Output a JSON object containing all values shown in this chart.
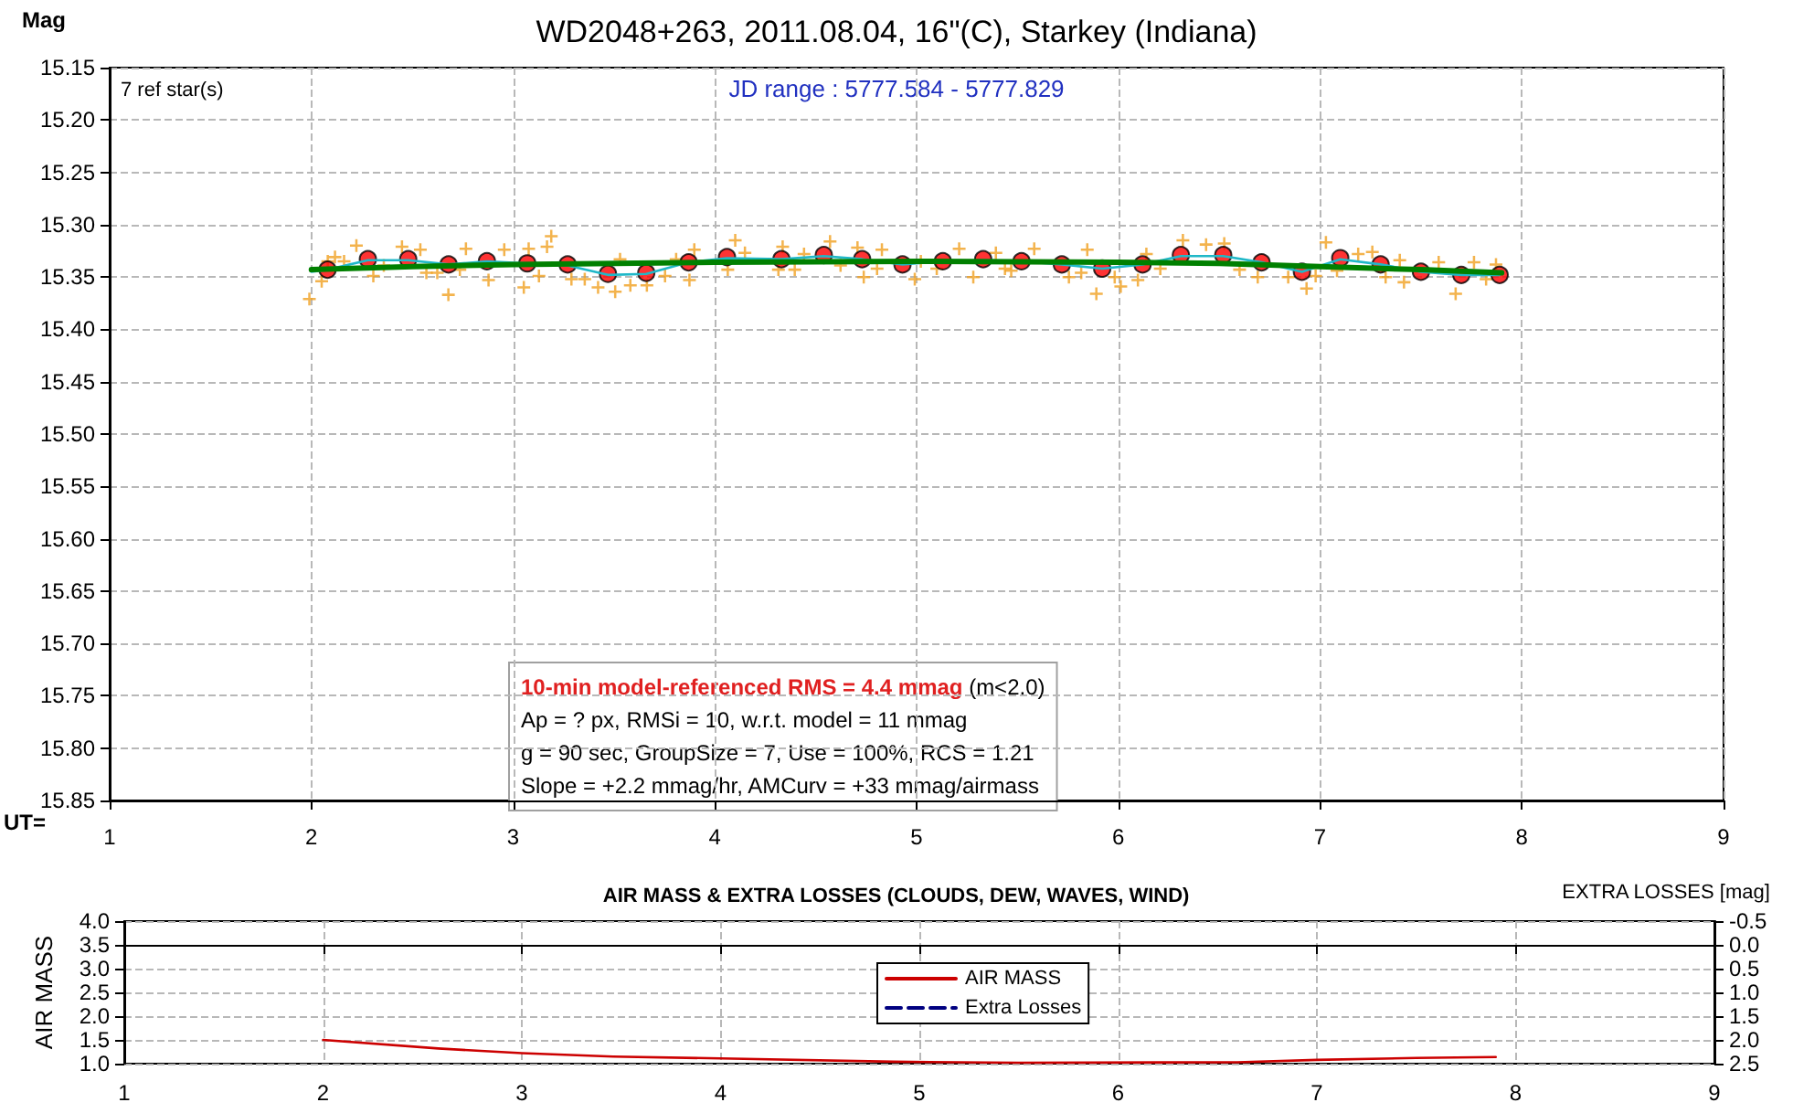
{
  "chart_data": [
    {
      "type": "scatter",
      "title": "WD2048+263, 2011.08.04, 16\"(C), Starkey (Indiana)",
      "xlabel": "UT=",
      "ylabel": "Mag",
      "annotations": [
        "7 ref star(s)",
        "JD range : 5777.584 - 5777.829",
        "10-min model-referenced RMS = 4.4 mmag",
        "(m<2.0)",
        "Ap = ? px, RMSi = 10, w.r.t. model = 11 mmag",
        "g = 90 sec, GroupSize = 7, Use = 100%, RCS = 1.21",
        "Slope = +2.2 mmag/hr, AMCurv = +33 mmag/airmass"
      ],
      "xlim": [
        1,
        9
      ],
      "xticks": [
        1,
        2,
        3,
        4,
        5,
        6,
        7,
        8,
        9
      ],
      "ylim": [
        15.85,
        15.15
      ],
      "yticks": [
        {
          "value": 15.15,
          "label": "15.15"
        },
        {
          "value": 15.2,
          "label": "15.20"
        },
        {
          "value": 15.25,
          "label": "15.25"
        },
        {
          "value": 15.3,
          "label": "15.30"
        },
        {
          "value": 15.35,
          "label": "15.35"
        },
        {
          "value": 15.4,
          "label": "15.40"
        },
        {
          "value": 15.45,
          "label": "15.45"
        },
        {
          "value": 15.5,
          "label": "15.50"
        },
        {
          "value": 15.55,
          "label": "15.55"
        },
        {
          "value": 15.6,
          "label": "15.60"
        },
        {
          "value": 15.65,
          "label": "15.65"
        },
        {
          "value": 15.7,
          "label": "15.70"
        },
        {
          "value": 15.75,
          "label": "15.75"
        },
        {
          "value": 15.8,
          "label": "15.80"
        },
        {
          "value": 15.85,
          "label": "15.85"
        }
      ],
      "grid": true,
      "series": [
        {
          "marker": "cross",
          "color": "#f0a020",
          "x": [
            1.99,
            2.051,
            2.081,
            2.117,
            2.162,
            2.223,
            2.307,
            2.359,
            2.449,
            2.54,
            2.57,
            2.624,
            2.679,
            2.736,
            2.766,
            2.878,
            2.956,
            3.053,
            3.077,
            3.128,
            3.168,
            3.189,
            3.289,
            3.355,
            3.421,
            3.506,
            3.53,
            3.581,
            3.663,
            3.753,
            3.808,
            3.874,
            3.898,
            4.064,
            4.101,
            4.149,
            4.315,
            4.336,
            4.396,
            4.442,
            4.571,
            4.623,
            4.707,
            4.738,
            4.804,
            4.828,
            4.991,
            5.021,
            5.1,
            5.211,
            5.281,
            5.393,
            5.438,
            5.469,
            5.583,
            5.755,
            5.816,
            5.846,
            5.891,
            5.982,
            6.012,
            6.097,
            6.139,
            6.208,
            6.32,
            6.435,
            6.525,
            6.601,
            6.691,
            6.842,
            6.933,
            6.978,
            7.029,
            7.084,
            7.189,
            7.259,
            7.325,
            7.395,
            7.416,
            7.588,
            7.672,
            7.763,
            7.823,
            7.872
          ],
          "values": [
            15.371,
            15.354,
            15.335,
            15.331,
            15.335,
            15.32,
            15.349,
            15.339,
            15.321,
            15.324,
            15.346,
            15.346,
            15.367,
            15.343,
            15.323,
            15.353,
            15.324,
            15.36,
            15.323,
            15.349,
            15.321,
            15.311,
            15.352,
            15.352,
            15.36,
            15.364,
            15.333,
            15.358,
            15.358,
            15.349,
            15.333,
            15.353,
            15.324,
            15.343,
            15.315,
            15.327,
            15.343,
            15.321,
            15.343,
            15.328,
            15.316,
            15.339,
            15.322,
            15.35,
            15.342,
            15.324,
            15.352,
            15.335,
            15.342,
            15.323,
            15.35,
            15.327,
            15.342,
            15.344,
            15.323,
            15.35,
            15.346,
            15.324,
            15.366,
            15.35,
            15.359,
            15.353,
            15.328,
            15.342,
            15.315,
            15.319,
            15.318,
            15.343,
            15.35,
            15.35,
            15.361,
            15.349,
            15.317,
            15.344,
            15.328,
            15.326,
            15.35,
            15.334,
            15.355,
            15.336,
            15.366,
            15.336,
            15.352,
            15.338
          ]
        },
        {
          "type": "line",
          "marker": "none",
          "color": "#20b8c8",
          "x": [
            2.0,
            2.08,
            2.28,
            2.48,
            2.68,
            2.87,
            3.07,
            3.27,
            3.47,
            3.66,
            3.87,
            4.06,
            4.33,
            4.54,
            4.73,
            4.93,
            5.13,
            5.33,
            5.52,
            5.72,
            5.92,
            6.12,
            6.31,
            6.52,
            6.71,
            6.91,
            7.1,
            7.3,
            7.5,
            7.7,
            7.89
          ],
          "values": [
            15.345,
            15.343,
            15.334,
            15.334,
            15.338,
            15.335,
            15.337,
            15.339,
            15.348,
            15.347,
            15.336,
            15.332,
            15.333,
            15.33,
            15.333,
            15.338,
            15.335,
            15.334,
            15.335,
            15.338,
            15.342,
            15.338,
            15.33,
            15.33,
            15.336,
            15.345,
            15.333,
            15.338,
            15.345,
            15.348,
            15.348
          ]
        },
        {
          "type": "line",
          "marker": "none",
          "color": "#008000",
          "x": [
            2.0,
            2.5,
            3.0,
            4.0,
            5.0,
            6.0,
            6.5,
            7.0,
            7.5,
            7.9
          ],
          "values": [
            15.343,
            15.34,
            15.338,
            15.336,
            15.335,
            15.336,
            15.337,
            15.34,
            15.343,
            15.346
          ]
        },
        {
          "marker": "circle",
          "color": "#ff0000",
          "x": [
            2.08,
            2.28,
            2.48,
            2.68,
            2.87,
            3.07,
            3.27,
            3.47,
            3.66,
            3.87,
            4.06,
            4.33,
            4.54,
            4.73,
            4.93,
            5.13,
            5.33,
            5.52,
            5.72,
            5.92,
            6.12,
            6.31,
            6.52,
            6.71,
            6.91,
            7.1,
            7.3,
            7.5,
            7.7,
            7.89
          ],
          "values": [
            15.343,
            15.333,
            15.333,
            15.338,
            15.335,
            15.337,
            15.338,
            15.347,
            15.346,
            15.336,
            15.331,
            15.333,
            15.329,
            15.333,
            15.338,
            15.335,
            15.333,
            15.335,
            15.338,
            15.342,
            15.338,
            15.329,
            15.329,
            15.336,
            15.345,
            15.332,
            15.338,
            15.345,
            15.348,
            15.348
          ]
        }
      ]
    },
    {
      "type": "line",
      "title": "AIR MASS & EXTRA LOSSES (CLOUDS, DEW, WAVES, WIND)",
      "ylabel": "AIR MASS",
      "y2label": "EXTRA LOSSES [mag]",
      "xlim": [
        1,
        9
      ],
      "xticks": [
        1,
        2,
        3,
        4,
        5,
        6,
        7,
        8,
        9
      ],
      "ylim": [
        1,
        4
      ],
      "yticks": [
        {
          "value": 1,
          "label": "1.0"
        },
        {
          "value": 1.5,
          "label": "1.5"
        },
        {
          "value": 2,
          "label": "2.0"
        },
        {
          "value": 2.5,
          "label": "2.5"
        },
        {
          "value": 3,
          "label": "3.0"
        },
        {
          "value": 3.5,
          "label": "3.5"
        },
        {
          "value": 4,
          "label": "4.0"
        }
      ],
      "y2lim": [
        2.5,
        -0.5
      ],
      "y2ticks": [
        {
          "value": -0.5,
          "label": "-0.5"
        },
        {
          "value": 0,
          "label": "0.0"
        },
        {
          "value": 0.5,
          "label": "0.5"
        },
        {
          "value": 1,
          "label": "1.0"
        },
        {
          "value": 1.5,
          "label": "1.5"
        },
        {
          "value": 2,
          "label": "2.0"
        },
        {
          "value": 2.5,
          "label": "2.5"
        }
      ],
      "grid": true,
      "legend": "center",
      "series": [
        {
          "name": "AIR MASS",
          "color": "#cc0000",
          "line_style": "solid",
          "x": [
            2.0,
            2.58,
            3.0,
            3.46,
            4.0,
            4.87,
            5.5,
            6.6,
            7.0,
            7.5,
            7.9
          ],
          "values": [
            1.5,
            1.32,
            1.22,
            1.15,
            1.11,
            1.04,
            1.02,
            1.03,
            1.08,
            1.12,
            1.14
          ]
        },
        {
          "name": "Extra Losses",
          "color": "#000080",
          "line_style": "dashed"
        }
      ]
    }
  ]
}
